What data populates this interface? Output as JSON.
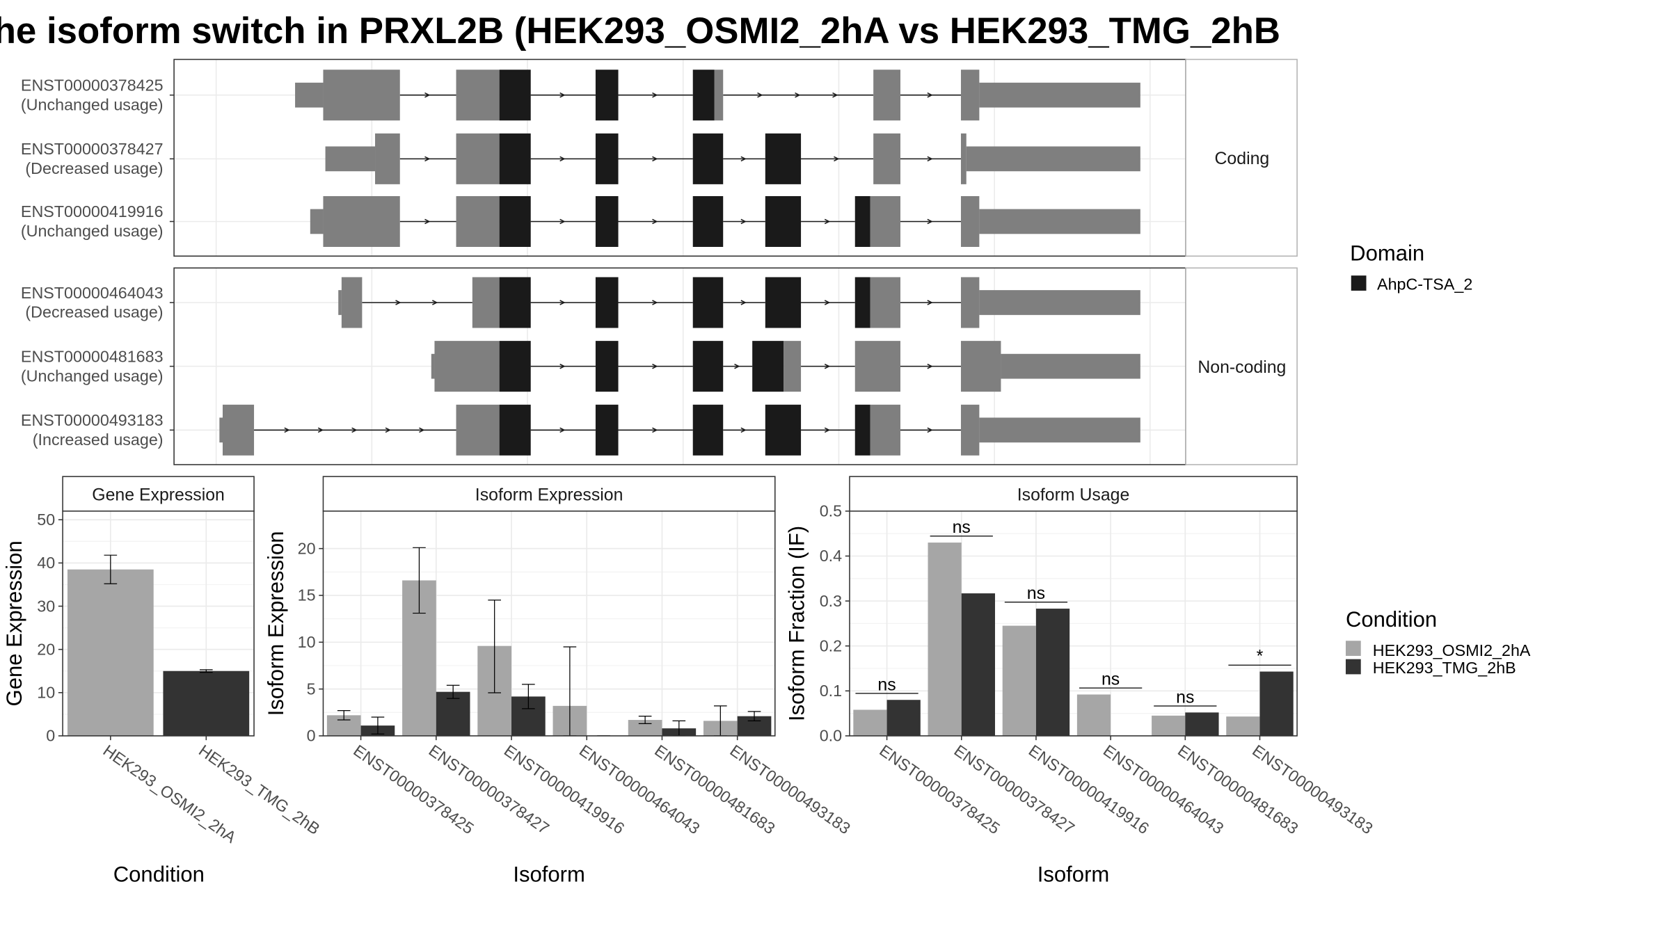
{
  "title": "he isoform switch in PRXL2B (HEK293_OSMI2_2hA vs HEK293_TMG_2hB",
  "colors": {
    "utr": "#7f7f7f",
    "domain": "#1a1a1a",
    "cond_a": "#a6a6a6",
    "cond_b": "#333333",
    "grid": "#ebebeb",
    "panel_border": "#333333"
  },
  "structure": {
    "facets": [
      "Coding",
      "Non-coding"
    ],
    "legend_title": "Domain",
    "legend_item": "AhpC-TSA_2",
    "transcripts": [
      {
        "id": "ENST00000378425",
        "usage": "(Unchanged usage)",
        "facet": 0
      },
      {
        "id": "ENST00000378427",
        "usage": "(Decreased usage)",
        "facet": 0
      },
      {
        "id": "ENST00000419916",
        "usage": "(Unchanged usage)",
        "facet": 0
      },
      {
        "id": "ENST00000464043",
        "usage": "(Decreased usage)",
        "facet": 1
      },
      {
        "id": "ENST00000481683",
        "usage": "(Unchanged usage)",
        "facet": 1
      },
      {
        "id": "ENST00000493183",
        "usage": "(Increased usage)",
        "facet": 1
      }
    ]
  },
  "condition_legend": {
    "title": "Condition",
    "items": [
      "HEK293_OSMI2_2hA",
      "HEK293_TMG_2hB"
    ]
  },
  "chart_data": [
    {
      "type": "bar",
      "title": "Gene Expression",
      "xlabel": "Condition",
      "ylabel": "Gene Expression",
      "categories": [
        "HEK293_OSMI2_2hA",
        "HEK293_TMG_2hB"
      ],
      "values": [
        38.5,
        15.0
      ],
      "error_low": [
        35.2,
        14.7
      ],
      "error_high": [
        41.8,
        15.3
      ],
      "ylim": [
        0,
        52
      ],
      "yticks": [
        0,
        10,
        20,
        30,
        40,
        50
      ]
    },
    {
      "type": "bar",
      "title": "Isoform Expression",
      "xlabel": "Isoform",
      "ylabel": "Isoform Expression",
      "categories": [
        "ENST00000378425",
        "ENST00000378427",
        "ENST00000419916",
        "ENST00000464043",
        "ENST00000481683",
        "ENST00000493183"
      ],
      "series": [
        {
          "name": "HEK293_OSMI2_2hA",
          "values": [
            2.2,
            16.6,
            9.6,
            3.2,
            1.7,
            1.6
          ],
          "error_low": [
            1.7,
            13.1,
            4.6,
            0.0,
            1.3,
            0.0
          ],
          "error_high": [
            2.7,
            20.1,
            14.5,
            9.5,
            2.1,
            3.2
          ]
        },
        {
          "name": "HEK293_TMG_2hB",
          "values": [
            1.1,
            4.7,
            4.2,
            0.0,
            0.8,
            2.1
          ],
          "error_low": [
            0.2,
            4.0,
            2.9,
            0.0,
            0.0,
            1.6
          ],
          "error_high": [
            2.0,
            5.4,
            5.5,
            0.0,
            1.6,
            2.6
          ]
        }
      ],
      "ylim": [
        0,
        24
      ],
      "yticks": [
        0,
        5,
        10,
        15,
        20
      ]
    },
    {
      "type": "bar",
      "title": "Isoform Usage",
      "xlabel": "Isoform",
      "ylabel": "Isoform Fraction (IF)",
      "categories": [
        "ENST00000378425",
        "ENST00000378427",
        "ENST00000419916",
        "ENST00000464043",
        "ENST00000481683",
        "ENST00000493183"
      ],
      "series": [
        {
          "name": "HEK293_OSMI2_2hA",
          "values": [
            0.058,
            0.43,
            0.245,
            0.092,
            0.045,
            0.043
          ]
        },
        {
          "name": "HEK293_TMG_2hB",
          "values": [
            0.08,
            0.317,
            0.283,
            0.0,
            0.052,
            0.143
          ]
        }
      ],
      "significance": [
        "ns",
        "ns",
        "ns",
        "ns",
        "ns",
        "*"
      ],
      "ylim": [
        0,
        0.5
      ],
      "yticks": [
        0.0,
        0.1,
        0.2,
        0.3,
        0.4,
        0.5
      ],
      "ytick_labels": [
        "0.0",
        "0.1",
        "0.2",
        "0.3",
        "0.4",
        "0.5"
      ]
    }
  ]
}
